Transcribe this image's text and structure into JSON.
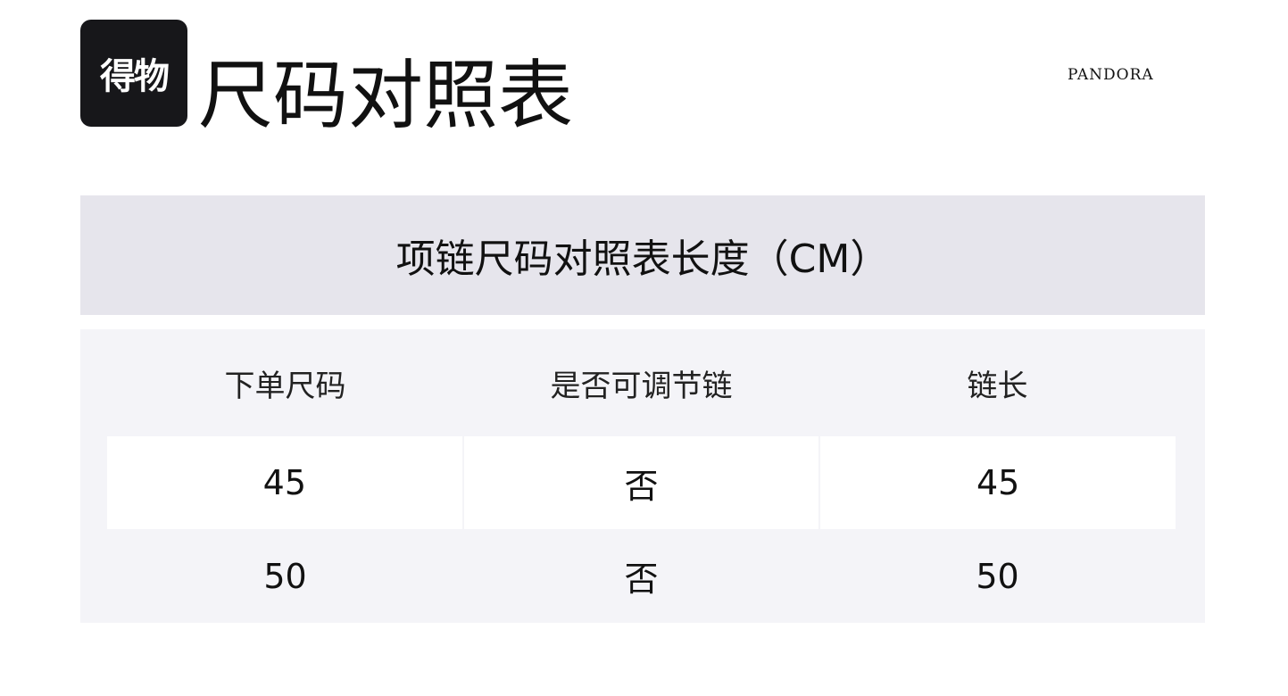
{
  "logo": {
    "text": "得物"
  },
  "title": "尺码对照表",
  "brand": "PANDORA",
  "band_title": "项链尺码对照表长度（CM）",
  "table": {
    "headers": [
      "下单尺码",
      "是否可调节链",
      "链长"
    ],
    "rows": [
      [
        "45",
        "否",
        "45"
      ],
      [
        "50",
        "否",
        "50"
      ]
    ]
  },
  "colors": {
    "band": "#e6e5ec",
    "table_bg": "#f4f4f8",
    "logo_bg": "#17171a"
  }
}
